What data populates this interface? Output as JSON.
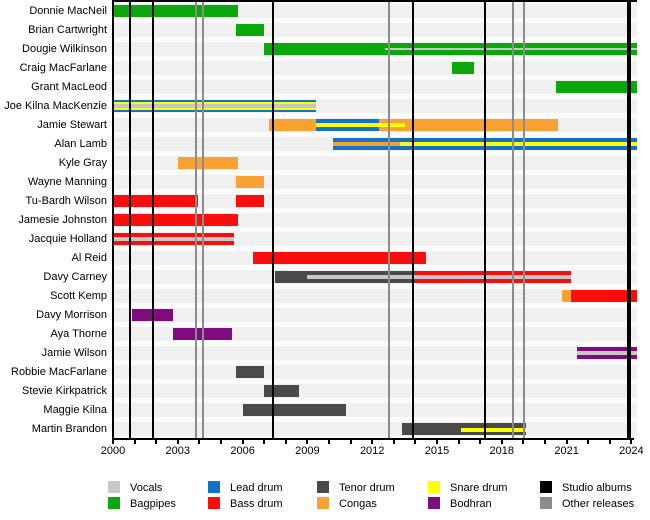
{
  "chart_data": {
    "type": "timeline",
    "title": "",
    "x_axis": {
      "start": 2000,
      "end": 2024.25,
      "minor_tick_every_years": 1,
      "tick_labels": [
        "2000",
        "2003",
        "2006",
        "2009",
        "2012",
        "2015",
        "2018",
        "2021",
        "2024"
      ],
      "tick_label_years": [
        2000,
        2003,
        2006,
        2009,
        2012,
        2015,
        2018,
        2021,
        2024
      ]
    },
    "members": [
      {
        "name": "Donnie MacNeil",
        "segments": [
          {
            "from": 2000,
            "to": 2005.8,
            "stripes": [
              "bagpipes"
            ]
          }
        ]
      },
      {
        "name": "Brian Cartwright",
        "segments": [
          {
            "from": 2005.7,
            "to": 2007.0,
            "stripes": [
              "bagpipes"
            ]
          }
        ]
      },
      {
        "name": "Dougie Wilkinson",
        "segments": [
          {
            "from": 2007.0,
            "to": 2012.6,
            "stripes": [
              "bagpipes"
            ]
          },
          {
            "from": 2012.6,
            "to": 2024.25,
            "stripes": [
              "bagpipes",
              "vocals",
              "bagpipes"
            ],
            "weights": [
              5,
              2,
              5
            ]
          }
        ]
      },
      {
        "name": "Craig MacFarlane",
        "segments": [
          {
            "from": 2015.7,
            "to": 2016.7,
            "stripes": [
              "bagpipes"
            ]
          }
        ]
      },
      {
        "name": "Grant MacLeod",
        "segments": [
          {
            "from": 2020.5,
            "to": 2024.25,
            "stripes": [
              "bagpipes"
            ]
          }
        ]
      },
      {
        "name": "Joe Kilna MacKenzie",
        "segments": [
          {
            "from": 2000,
            "to": 2009.4,
            "stripes": [
              "lead_drum",
              "snare_drum",
              "vocals",
              "snare_drum",
              "lead_drum"
            ],
            "weights": [
              2,
              2,
              4,
              2,
              2
            ]
          }
        ]
      },
      {
        "name": "Jamie Stewart",
        "segments": [
          {
            "from": 2007.2,
            "to": 2009.4,
            "stripes": [
              "congas"
            ]
          },
          {
            "from": 2009.4,
            "to": 2012.3,
            "stripes": [
              "lead_drum",
              "snare_drum",
              "lead_drum"
            ]
          },
          {
            "from": 2012.3,
            "to": 2013.5,
            "stripes": [
              "congas",
              "snare_drum",
              "congas"
            ]
          },
          {
            "from": 2013.5,
            "to": 2020.6,
            "stripes": [
              "congas"
            ]
          }
        ]
      },
      {
        "name": "Alan Lamb",
        "segments": [
          {
            "from": 2010.2,
            "to": 2013.3,
            "stripes": [
              "lead_drum",
              "congas",
              "lead_drum"
            ]
          },
          {
            "from": 2013.3,
            "to": 2024.25,
            "stripes": [
              "lead_drum",
              "snare_drum",
              "lead_drum"
            ]
          }
        ]
      },
      {
        "name": "Kyle Gray",
        "segments": [
          {
            "from": 2003.0,
            "to": 2005.8,
            "stripes": [
              "congas"
            ]
          }
        ]
      },
      {
        "name": "Wayne Manning",
        "segments": [
          {
            "from": 2005.7,
            "to": 2007.0,
            "stripes": [
              "congas"
            ]
          }
        ]
      },
      {
        "name": "Tu-Bardh Wilson",
        "segments": [
          {
            "from": 2000,
            "to": 2003.95,
            "stripes": [
              "bass_drum"
            ]
          },
          {
            "from": 2005.7,
            "to": 2007.0,
            "stripes": [
              "bass_drum"
            ]
          }
        ]
      },
      {
        "name": "Jamesie Johnston",
        "segments": [
          {
            "from": 2000,
            "to": 2005.8,
            "stripes": [
              "bass_drum"
            ]
          }
        ]
      },
      {
        "name": "Jacquie Holland",
        "segments": [
          {
            "from": 2000,
            "to": 2005.6,
            "stripes": [
              "bass_drum",
              "vocals",
              "bass_drum"
            ]
          }
        ]
      },
      {
        "name": "Al Reid",
        "segments": [
          {
            "from": 2006.5,
            "to": 2014.5,
            "stripes": [
              "bass_drum"
            ]
          }
        ]
      },
      {
        "name": "Davy Carney",
        "segments": [
          {
            "from": 2007.5,
            "to": 2009.0,
            "stripes": [
              "tenor_drum"
            ]
          },
          {
            "from": 2009.0,
            "to": 2014.0,
            "stripes": [
              "tenor_drum",
              "vocals",
              "tenor_drum"
            ]
          },
          {
            "from": 2014.0,
            "to": 2021.2,
            "stripes": [
              "bass_drum",
              "vocals",
              "bass_drum"
            ]
          }
        ]
      },
      {
        "name": "Scott Kemp",
        "segments": [
          {
            "from": 2020.8,
            "to": 2021.2,
            "stripes": [
              "congas"
            ]
          },
          {
            "from": 2021.2,
            "to": 2024.25,
            "stripes": [
              "bass_drum"
            ]
          }
        ]
      },
      {
        "name": "Davy Morrison",
        "segments": [
          {
            "from": 2000.9,
            "to": 2002.8,
            "stripes": [
              "bodhran"
            ]
          }
        ]
      },
      {
        "name": "Aya Thorne",
        "segments": [
          {
            "from": 2002.8,
            "to": 2005.5,
            "stripes": [
              "bodhran"
            ]
          }
        ]
      },
      {
        "name": "Jamie Wilson",
        "segments": [
          {
            "from": 2021.5,
            "to": 2024.25,
            "stripes": [
              "bodhran",
              "vocals",
              "bodhran"
            ]
          }
        ]
      },
      {
        "name": "Robbie MacFarlane",
        "segments": [
          {
            "from": 2005.7,
            "to": 2007.0,
            "stripes": [
              "tenor_drum"
            ]
          }
        ]
      },
      {
        "name": "Stevie Kirkpatrick",
        "segments": [
          {
            "from": 2007.0,
            "to": 2008.6,
            "stripes": [
              "tenor_drum"
            ]
          }
        ]
      },
      {
        "name": "Maggie Kilna",
        "segments": [
          {
            "from": 2006.0,
            "to": 2010.8,
            "stripes": [
              "tenor_drum"
            ]
          }
        ]
      },
      {
        "name": "Martin Brandon",
        "segments": [
          {
            "from": 2013.4,
            "to": 2016.1,
            "stripes": [
              "tenor_drum"
            ]
          },
          {
            "from": 2016.1,
            "to": 2019.1,
            "stripes": [
              "tenor_drum",
              "snare_drum",
              "tenor_drum"
            ],
            "weights": [
              5,
              4,
              3
            ]
          }
        ]
      }
    ],
    "release_lines": [
      {
        "year": 2000.8,
        "type": "studio_album"
      },
      {
        "year": 2001.85,
        "type": "studio_album"
      },
      {
        "year": 2003.85,
        "type": "other_release"
      },
      {
        "year": 2004.15,
        "type": "other_release"
      },
      {
        "year": 2007.4,
        "type": "studio_album"
      },
      {
        "year": 2012.8,
        "type": "other_release"
      },
      {
        "year": 2013.9,
        "type": "studio_album"
      },
      {
        "year": 2017.2,
        "type": "studio_album"
      },
      {
        "year": 2018.5,
        "type": "other_release"
      },
      {
        "year": 2019.05,
        "type": "other_release"
      },
      {
        "year": 2023.9,
        "type": "studio_album",
        "thick": true
      }
    ]
  },
  "colors": {
    "vocals": "#c8c8c8",
    "bagpipes": "#0bא80b",
    "lead_drum": "#1172c6",
    "bass_drum": "#fa0d0d",
    "tenor_drum": "#4a4a4a",
    "congas": "#f9a132",
    "snare_drum": "#ffff00",
    "bodhran": "#7f0b7f",
    "studio_albums": "#000000",
    "other_releases": "#8c8c8c"
  },
  "legend": {
    "items": [
      {
        "label": "Vocals",
        "color_key": "vocals"
      },
      {
        "label": "Lead drum",
        "color_key": "lead_drum"
      },
      {
        "label": "Tenor drum",
        "color_key": "tenor_drum"
      },
      {
        "label": "Snare drum",
        "color_key": "snare_drum"
      },
      {
        "label": "Studio albums",
        "color_key": "studio_albums"
      },
      {
        "label": "Bagpipes",
        "color_key": "bagpipes"
      },
      {
        "label": "Bass drum",
        "color_key": "bass_drum"
      },
      {
        "label": "Congas",
        "color_key": "congas"
      },
      {
        "label": "Bodhran",
        "color_key": "bodhran"
      },
      {
        "label": "Other releases",
        "color_key": "other_releases"
      }
    ]
  }
}
